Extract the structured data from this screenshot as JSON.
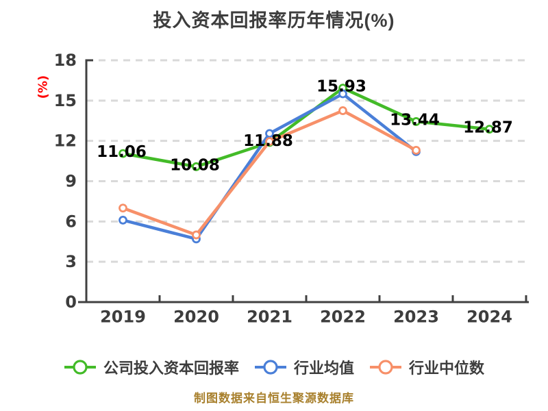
{
  "title": "投入资本回报率历年情况(%)",
  "footer": "制图数据来自恒生聚源数据库",
  "chart_data": {
    "type": "line",
    "title": "投入资本回报率历年情况(%)",
    "xlabel": "",
    "ylabel": "(%)",
    "categories": [
      "2019",
      "2020",
      "2021",
      "2022",
      "2023",
      "2024"
    ],
    "y_ticks": [
      0,
      3,
      6,
      9,
      12,
      15,
      18
    ],
    "ylim": [
      0,
      18
    ],
    "grid": "horizontal-dashed",
    "legend_position": "bottom",
    "series": [
      {
        "name": "公司投入资本回报率",
        "color": "#43bb28",
        "values": [
          11.06,
          10.08,
          11.88,
          15.93,
          13.44,
          12.87
        ],
        "data_labels": true
      },
      {
        "name": "行业均值",
        "color": "#4a7fd8",
        "values": [
          6.1,
          4.7,
          12.55,
          15.5,
          11.2,
          null
        ],
        "data_labels": false
      },
      {
        "name": "行业中位数",
        "color": "#f79069",
        "values": [
          7.0,
          5.0,
          11.95,
          14.25,
          11.3,
          null
        ],
        "data_labels": false
      }
    ],
    "style": {
      "background": "#ffffff",
      "axis_color": "#404040",
      "grid_color": "#d9d9d9",
      "tick_label_color": "#3d3d3d",
      "data_label_color": "#000000",
      "ylabel_color": "#ff0000",
      "title_color": "#3d3d3d",
      "footer_color": "#a8802d",
      "marker_fill": "#ffffff"
    }
  }
}
